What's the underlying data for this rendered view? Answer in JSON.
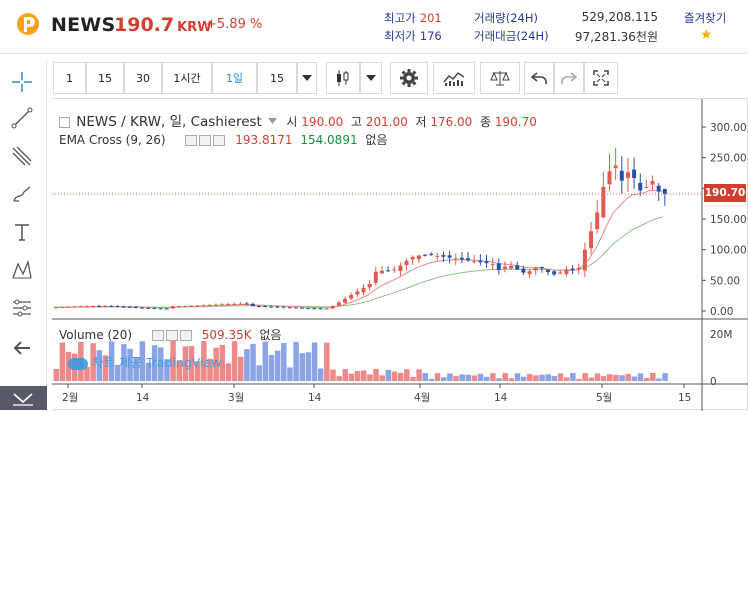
{
  "header": {
    "symbol": "NEWS",
    "price": "190.7",
    "price_unit": "KRW",
    "change": "+5.89 %",
    "high_label": "최고가",
    "high_value": "201",
    "low_label": "최저가",
    "low_value": "176",
    "volume_label": "거래량(24H)",
    "volume_value": "529,208.115",
    "amount_label": "거래대금(24H)",
    "amount_value": "97,281.36천원",
    "favorite_label": "즐겨찾기"
  },
  "toolbar": {
    "intervals": [
      "1",
      "15",
      "30",
      "1시간",
      "1일",
      "15"
    ],
    "active_interval": "1일"
  },
  "legend": {
    "title": "NEWS / KRW, 일, Cashierest",
    "open_label": "시",
    "open": "190.00",
    "high_label": "고",
    "high": "201.00",
    "low_label": "저",
    "low": "176.00",
    "close_label": "종",
    "close": "190.70",
    "ema_label": "EMA Cross (9, 26)",
    "ema1": "193.8171",
    "ema2": "154.0891",
    "ema_none": "없음",
    "vol_label": "Volume (20)",
    "vol_value": "509.35K",
    "vol_none": "없음"
  },
  "watermark": "차트 제공 TradingView",
  "price_tag": "190.70",
  "colors": {
    "up": "#e25a50",
    "down": "#2a4fa8",
    "accent": "#2a8bd8",
    "ema_fast": "#e88a8a",
    "ema_slow": "#8bc48b"
  },
  "chart_data": {
    "type": "candlestick",
    "price_axis_ticks": [
      "300.00",
      "250.00",
      "200.00",
      "150.00",
      "100.00",
      "50.00",
      "0.00"
    ],
    "price_ylim": [
      0,
      300
    ],
    "volume_axis_ticks": [
      "20M",
      "0"
    ],
    "x_tick_labels": [
      "2월",
      "14",
      "3월",
      "14",
      "4월",
      "14",
      "5월",
      "15"
    ],
    "last_price": 190.7
  }
}
